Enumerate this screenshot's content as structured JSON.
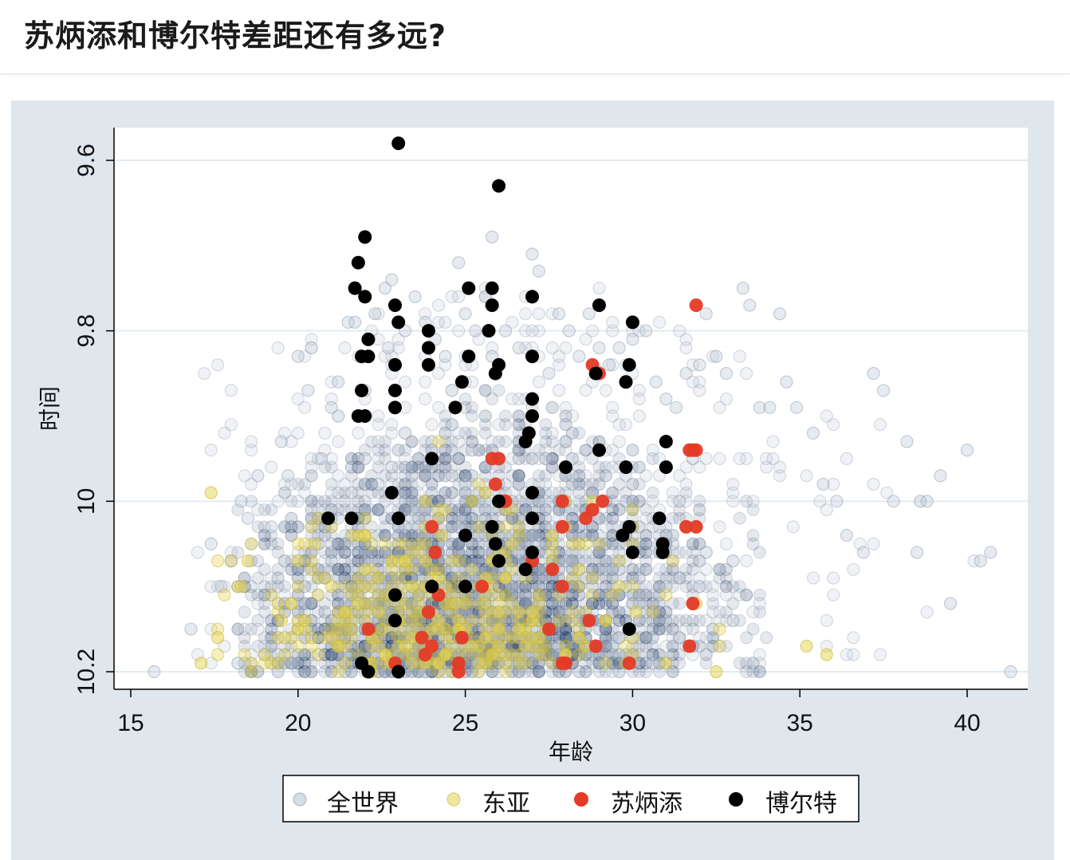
{
  "header": {
    "title": "苏炳添和博尔特差距还有多远?"
  },
  "chart_data": {
    "type": "scatter",
    "title": "苏炳添和博尔特差距还有多远?",
    "xlabel": "年龄",
    "ylabel": "时间",
    "xlim": [
      14.5,
      41.8
    ],
    "ylim": [
      9.56,
      10.22
    ],
    "y_reversed": true,
    "x_ticks": [
      15,
      20,
      25,
      30,
      35,
      40
    ],
    "y_ticks": [
      9.6,
      9.8,
      10,
      10.2
    ],
    "y_tick_labels": [
      "9.6",
      "9.8",
      "10",
      "10.2"
    ],
    "grid": "horizontal",
    "legend_position": "bottom",
    "colors": {
      "world_fill": "#b9c6d3",
      "world_stroke": "#8e9fb2",
      "east_asia_fill": "#e4d44e",
      "east_asia_stroke": "#c9b83a",
      "su_fill": "#e43a26",
      "bolt_fill": "#000000",
      "dense_core": "#29446b"
    },
    "series": [
      {
        "name": "全世界",
        "note_density": "thousands of overlapping semi-transparent points",
        "points": [
          [
            15.7,
            10.2
          ],
          [
            16.8,
            10.15
          ],
          [
            17.4,
            10.05
          ],
          [
            17.7,
            10.1
          ],
          [
            18.0,
            10.07
          ],
          [
            18.3,
            10.0
          ],
          [
            18.5,
            10.02
          ],
          [
            18.8,
            9.97
          ],
          [
            19.2,
            10.03
          ],
          [
            19.5,
            9.93
          ],
          [
            19.7,
            9.97
          ],
          [
            20.0,
            9.83
          ],
          [
            20.3,
            9.87
          ],
          [
            20.7,
            9.95
          ],
          [
            21.0,
            9.89
          ],
          [
            21.2,
            9.86
          ],
          [
            21.5,
            9.79
          ],
          [
            21.7,
            9.79
          ],
          [
            22.0,
            9.87
          ],
          [
            22.3,
            9.78
          ],
          [
            22.6,
            9.75
          ],
          [
            22.7,
            9.82
          ],
          [
            22.8,
            9.74
          ],
          [
            23.2,
            9.8
          ],
          [
            23.5,
            9.76
          ],
          [
            23.8,
            9.79
          ],
          [
            24.1,
            9.81
          ],
          [
            24.4,
            9.83
          ],
          [
            24.8,
            9.72
          ],
          [
            25.0,
            9.78
          ],
          [
            25.3,
            9.8
          ],
          [
            25.6,
            9.76
          ],
          [
            25.8,
            9.69
          ],
          [
            26.2,
            9.8
          ],
          [
            26.6,
            9.82
          ],
          [
            27.0,
            9.71
          ],
          [
            27.2,
            9.73
          ],
          [
            27.5,
            9.85
          ],
          [
            27.8,
            9.78
          ],
          [
            28.1,
            9.8
          ],
          [
            28.4,
            9.83
          ],
          [
            28.7,
            9.78
          ],
          [
            29.0,
            9.82
          ],
          [
            29.3,
            9.84
          ],
          [
            29.6,
            9.82
          ],
          [
            30.0,
            9.81
          ],
          [
            30.4,
            9.8
          ],
          [
            30.7,
            9.86
          ],
          [
            31.0,
            9.88
          ],
          [
            31.3,
            9.89
          ],
          [
            31.6,
            9.85
          ],
          [
            32.0,
            9.84
          ],
          [
            32.2,
            9.78
          ],
          [
            32.5,
            9.83
          ],
          [
            32.8,
            9.85
          ],
          [
            33.3,
            9.75
          ],
          [
            33.5,
            9.77
          ],
          [
            33.8,
            9.89
          ],
          [
            34.1,
            9.89
          ],
          [
            34.4,
            9.78
          ],
          [
            34.6,
            9.86
          ],
          [
            34.9,
            9.89
          ],
          [
            35.4,
            9.92
          ],
          [
            35.7,
            9.98
          ],
          [
            36.1,
            10.0
          ],
          [
            36.4,
            10.04
          ],
          [
            36.9,
            10.06
          ],
          [
            37.2,
            9.85
          ],
          [
            37.5,
            9.87
          ],
          [
            37.8,
            10.0
          ],
          [
            38.2,
            9.93
          ],
          [
            38.5,
            10.06
          ],
          [
            38.8,
            10.0
          ],
          [
            39.2,
            9.97
          ],
          [
            39.5,
            10.12
          ],
          [
            40.0,
            9.94
          ],
          [
            40.4,
            10.07
          ],
          [
            40.7,
            10.06
          ],
          [
            41.3,
            10.2
          ]
        ]
      },
      {
        "name": "东亚",
        "points": [
          [
            17.1,
            10.19
          ],
          [
            17.4,
            9.99
          ],
          [
            17.6,
            10.16
          ],
          [
            18.3,
            10.1
          ],
          [
            18.5,
            10.07
          ],
          [
            19.5,
            10.14
          ],
          [
            20.0,
            10.07
          ],
          [
            20.5,
            10.05
          ],
          [
            21.0,
            10.1
          ],
          [
            21.4,
            10.13
          ],
          [
            21.8,
            10.04
          ],
          [
            22.0,
            10.08
          ],
          [
            22.5,
            10.15
          ],
          [
            23.0,
            10.02
          ],
          [
            23.4,
            10.1
          ],
          [
            23.8,
            10.0
          ],
          [
            24.3,
            10.04
          ],
          [
            24.7,
            10.12
          ],
          [
            25.2,
            10.0
          ],
          [
            25.6,
            9.99
          ],
          [
            26.0,
            10.13
          ],
          [
            26.4,
            10.05
          ],
          [
            26.8,
            10.17
          ],
          [
            27.2,
            10.11
          ],
          [
            27.6,
            10.04
          ],
          [
            28.0,
            10.18
          ],
          [
            28.4,
            10.08
          ],
          [
            28.8,
            10.0
          ],
          [
            29.2,
            10.14
          ],
          [
            29.6,
            10.1
          ],
          [
            30.1,
            10.13
          ],
          [
            31.0,
            10.19
          ],
          [
            31.9,
            10.12
          ],
          [
            32.5,
            10.2
          ],
          [
            35.2,
            10.17
          ],
          [
            35.8,
            10.18
          ]
        ]
      },
      {
        "name": "苏炳添",
        "points": [
          [
            31.9,
            9.77
          ],
          [
            28.8,
            9.84
          ],
          [
            29.0,
            9.85
          ],
          [
            31.7,
            9.94
          ],
          [
            31.8,
            9.94
          ],
          [
            31.9,
            9.94
          ],
          [
            25.8,
            9.95
          ],
          [
            26.0,
            9.95
          ],
          [
            25.9,
            9.98
          ],
          [
            26.1,
            10.0
          ],
          [
            26.2,
            10.0
          ],
          [
            27.9,
            10.0
          ],
          [
            28.8,
            10.01
          ],
          [
            29.1,
            10.0
          ],
          [
            28.6,
            10.02
          ],
          [
            24.0,
            10.03
          ],
          [
            25.8,
            10.03
          ],
          [
            27.9,
            10.03
          ],
          [
            31.6,
            10.03
          ],
          [
            31.9,
            10.03
          ],
          [
            24.1,
            10.06
          ],
          [
            27.0,
            10.07
          ],
          [
            27.6,
            10.08
          ],
          [
            27.9,
            10.1
          ],
          [
            25.5,
            10.1
          ],
          [
            24.2,
            10.11
          ],
          [
            31.8,
            10.12
          ],
          [
            23.9,
            10.13
          ],
          [
            28.7,
            10.14
          ],
          [
            22.1,
            10.15
          ],
          [
            23.7,
            10.16
          ],
          [
            24.0,
            10.17
          ],
          [
            24.9,
            10.16
          ],
          [
            27.5,
            10.15
          ],
          [
            28.9,
            10.17
          ],
          [
            31.7,
            10.17
          ],
          [
            23.8,
            10.18
          ],
          [
            22.9,
            10.19
          ],
          [
            24.8,
            10.19
          ],
          [
            27.9,
            10.19
          ],
          [
            28.0,
            10.19
          ],
          [
            29.9,
            10.19
          ],
          [
            24.8,
            10.2
          ]
        ]
      },
      {
        "name": "博尔特",
        "points": [
          [
            23.0,
            9.58
          ],
          [
            26.0,
            9.63
          ],
          [
            22.0,
            9.69
          ],
          [
            21.8,
            9.72
          ],
          [
            21.7,
            9.75
          ],
          [
            22.0,
            9.76
          ],
          [
            25.1,
            9.75
          ],
          [
            25.8,
            9.75
          ],
          [
            27.0,
            9.76
          ],
          [
            22.9,
            9.77
          ],
          [
            25.8,
            9.77
          ],
          [
            29.0,
            9.77
          ],
          [
            23.0,
            9.79
          ],
          [
            23.9,
            9.8
          ],
          [
            25.7,
            9.8
          ],
          [
            30.0,
            9.79
          ],
          [
            22.1,
            9.81
          ],
          [
            21.9,
            9.83
          ],
          [
            22.1,
            9.83
          ],
          [
            23.9,
            9.82
          ],
          [
            25.1,
            9.83
          ],
          [
            27.0,
            9.83
          ],
          [
            22.9,
            9.84
          ],
          [
            23.9,
            9.84
          ],
          [
            26.0,
            9.84
          ],
          [
            25.9,
            9.85
          ],
          [
            29.9,
            9.84
          ],
          [
            28.9,
            9.85
          ],
          [
            24.9,
            9.86
          ],
          [
            29.8,
            9.86
          ],
          [
            21.9,
            9.87
          ],
          [
            22.9,
            9.87
          ],
          [
            27.0,
            9.88
          ],
          [
            22.9,
            9.89
          ],
          [
            24.7,
            9.89
          ],
          [
            21.8,
            9.9
          ],
          [
            22.0,
            9.9
          ],
          [
            27.0,
            9.9
          ],
          [
            26.9,
            9.92
          ],
          [
            26.8,
            9.93
          ],
          [
            31.0,
            9.93
          ],
          [
            29.0,
            9.94
          ],
          [
            24.0,
            9.95
          ],
          [
            28.0,
            9.96
          ],
          [
            29.8,
            9.96
          ],
          [
            31.0,
            9.96
          ],
          [
            22.8,
            9.99
          ],
          [
            27.0,
            9.99
          ],
          [
            26.0,
            10.0
          ],
          [
            20.9,
            10.02
          ],
          [
            21.6,
            10.02
          ],
          [
            23.0,
            10.02
          ],
          [
            27.0,
            10.02
          ],
          [
            30.8,
            10.02
          ],
          [
            25.8,
            10.03
          ],
          [
            29.9,
            10.03
          ],
          [
            29.7,
            10.04
          ],
          [
            25.0,
            10.04
          ],
          [
            25.9,
            10.05
          ],
          [
            30.9,
            10.05
          ],
          [
            30.9,
            10.06
          ],
          [
            30.0,
            10.06
          ],
          [
            27.0,
            10.06
          ],
          [
            26.0,
            10.07
          ],
          [
            26.8,
            10.08
          ],
          [
            24.0,
            10.1
          ],
          [
            25.0,
            10.1
          ],
          [
            22.9,
            10.11
          ],
          [
            22.9,
            10.14
          ],
          [
            29.9,
            10.15
          ],
          [
            21.9,
            10.19
          ],
          [
            22.1,
            10.2
          ],
          [
            23.0,
            10.2
          ]
        ]
      }
    ]
  }
}
